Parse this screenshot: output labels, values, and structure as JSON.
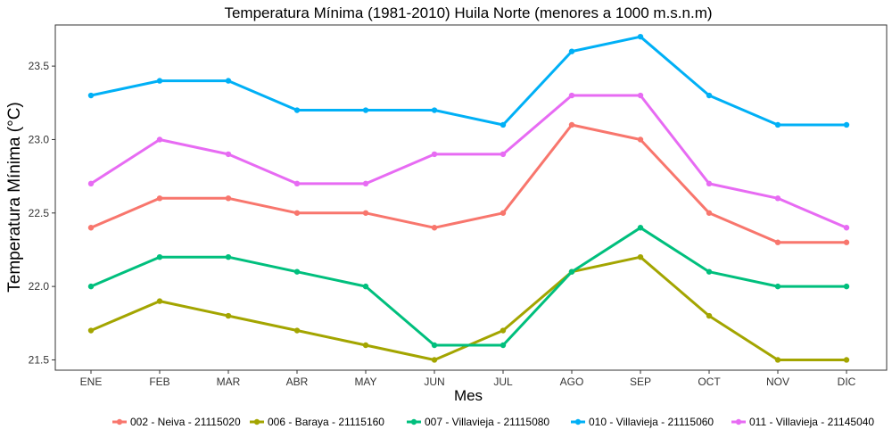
{
  "chart_data": {
    "type": "line",
    "title": "Temperatura Mínima (1981-2010) Huila Norte (menores a 1000 m.s.n.m)",
    "xlabel": "Mes",
    "ylabel": "Temperatura Mínima (°C)",
    "categories": [
      "ENE",
      "FEB",
      "MAR",
      "ABR",
      "MAY",
      "JUN",
      "JUL",
      "AGO",
      "SEP",
      "OCT",
      "NOV",
      "DIC"
    ],
    "ylim": [
      21.43,
      23.78
    ],
    "yticks": [
      21.5,
      22.0,
      22.5,
      23.0,
      23.5
    ],
    "ytick_labels": [
      "21.5",
      "22.0",
      "22.5",
      "23.0",
      "23.5"
    ],
    "grid": false,
    "legend_position": "bottom",
    "series": [
      {
        "name": "002 - Neiva - 21115020",
        "color": "#F8766D",
        "values": [
          22.4,
          22.6,
          22.6,
          22.5,
          22.5,
          22.4,
          22.5,
          23.1,
          23.0,
          22.5,
          22.3,
          22.3
        ]
      },
      {
        "name": "006 - Baraya - 21115160",
        "color": "#A3A500",
        "values": [
          21.7,
          21.9,
          21.8,
          21.7,
          21.6,
          21.5,
          21.7,
          22.1,
          22.2,
          21.8,
          21.5,
          21.5
        ]
      },
      {
        "name": "007 - Villavieja - 21115080",
        "color": "#00BF7D",
        "values": [
          22.0,
          22.2,
          22.2,
          22.1,
          22.0,
          21.6,
          21.6,
          22.1,
          22.4,
          22.1,
          22.0,
          22.0
        ]
      },
      {
        "name": "010 - Villavieja - 21115060",
        "color": "#00B0F6",
        "values": [
          23.3,
          23.4,
          23.4,
          23.2,
          23.2,
          23.2,
          23.1,
          23.6,
          23.7,
          23.3,
          23.1,
          23.1
        ]
      },
      {
        "name": "011 - Villavieja - 21145040",
        "color": "#E76BF3",
        "values": [
          22.7,
          23.0,
          22.9,
          22.7,
          22.7,
          22.9,
          22.9,
          23.3,
          23.3,
          22.7,
          22.6,
          22.4
        ]
      }
    ]
  }
}
